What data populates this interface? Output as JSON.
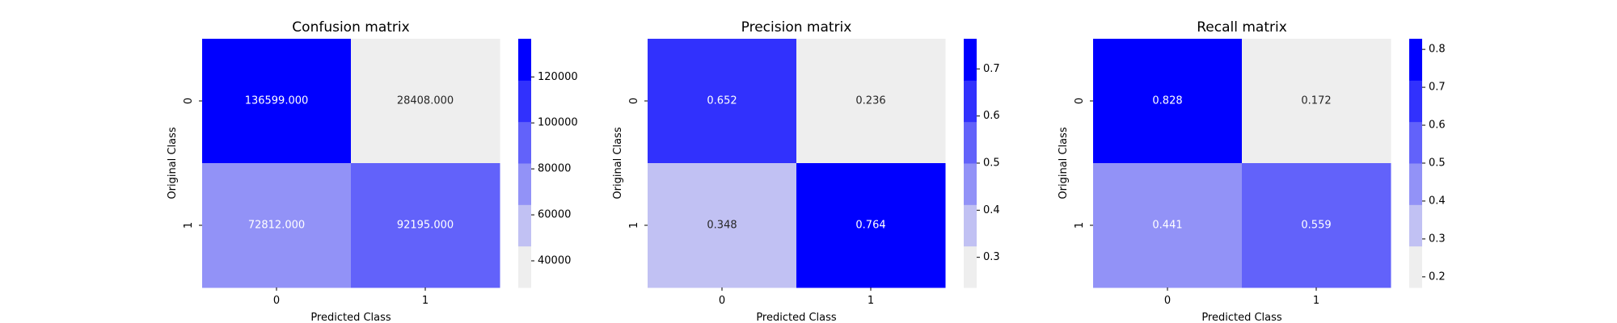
{
  "chart_data": [
    {
      "type": "heatmap",
      "title": "Confusion matrix",
      "xlabel": "Predicted Class",
      "ylabel": "Original Class",
      "x_categories": [
        "0",
        "1"
      ],
      "y_categories": [
        "0",
        "1"
      ],
      "values": [
        [
          136599,
          28408
        ],
        [
          72812,
          92195
        ]
      ],
      "cell_labels": [
        [
          "136599.000",
          "28408.000"
        ],
        [
          "72812.000",
          "92195.000"
        ]
      ],
      "colorbar": {
        "range": [
          28408,
          136599
        ],
        "ticks": [
          40000,
          60000,
          80000,
          100000,
          120000
        ]
      }
    },
    {
      "type": "heatmap",
      "title": "Precision matrix",
      "xlabel": "Predicted Class",
      "ylabel": "Original Class",
      "x_categories": [
        "0",
        "1"
      ],
      "y_categories": [
        "0",
        "1"
      ],
      "values": [
        [
          0.652,
          0.236
        ],
        [
          0.348,
          0.764
        ]
      ],
      "cell_labels": [
        [
          "0.652",
          "0.236"
        ],
        [
          "0.348",
          "0.764"
        ]
      ],
      "colorbar": {
        "range": [
          0.236,
          0.764
        ],
        "ticks": [
          0.3,
          0.4,
          0.5,
          0.6,
          0.7
        ]
      }
    },
    {
      "type": "heatmap",
      "title": "Recall matrix",
      "xlabel": "Predicted Class",
      "ylabel": "Original Class",
      "x_categories": [
        "0",
        "1"
      ],
      "y_categories": [
        "0",
        "1"
      ],
      "values": [
        [
          0.828,
          0.172
        ],
        [
          0.441,
          0.559
        ]
      ],
      "cell_labels": [
        [
          "0.828",
          "0.172"
        ],
        [
          "0.441",
          "0.559"
        ]
      ],
      "colorbar": {
        "range": [
          0.172,
          0.828
        ],
        "ticks": [
          0.2,
          0.3,
          0.4,
          0.5,
          0.6,
          0.7,
          0.8
        ]
      }
    }
  ],
  "colormap": [
    "#eeeeee",
    "#c1c1f3",
    "#9292f7",
    "#6262fa",
    "#3131fd",
    "#0000ff"
  ],
  "text_colors": {
    "light_cell": "#262626",
    "dark_cell": "#ffffff"
  }
}
